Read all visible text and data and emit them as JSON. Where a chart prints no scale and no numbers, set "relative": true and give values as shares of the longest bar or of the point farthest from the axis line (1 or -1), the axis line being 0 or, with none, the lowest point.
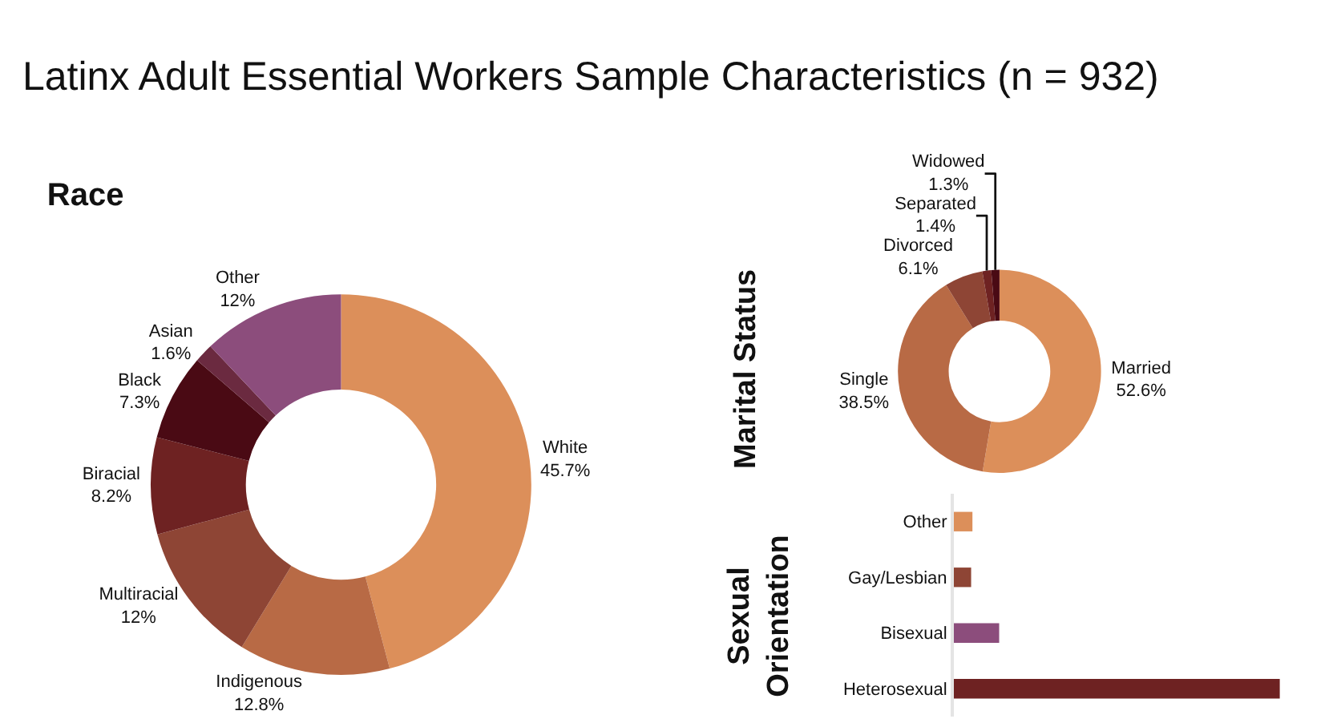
{
  "chart_data": [
    {
      "type": "donut",
      "title": "Latinx Adult Essential Workers Sample Characteristics (n = 932)",
      "subtitle": "Race",
      "categories": [
        "White",
        "Indigenous",
        "Multiracial",
        "Biracial",
        "Black",
        "Asian",
        "Other"
      ],
      "values": [
        45.7,
        12.8,
        12,
        8.2,
        7.3,
        1.6,
        12
      ],
      "value_labels": [
        "45.7%",
        "12.8%",
        "12%",
        "8.2%",
        "7.3%",
        "1.6%",
        "12%"
      ],
      "colors": [
        "#dc8f5a",
        "#b86a45",
        "#8e4535",
        "#6e2222",
        "#4a0a14",
        "#6b2a40",
        "#8c4d7c"
      ],
      "legend": false
    },
    {
      "type": "donut",
      "title": "Marital Status",
      "categories": [
        "Married",
        "Single",
        "Divorced",
        "Separated",
        "Widowed"
      ],
      "values": [
        52.6,
        38.5,
        6.1,
        1.4,
        1.3
      ],
      "value_labels": [
        "52.6%",
        "38.5%",
        "6.1%",
        "1.4%",
        "1.3%"
      ],
      "colors": [
        "#dc8f5a",
        "#b86a45",
        "#8e4535",
        "#6e2222",
        "#4a0a14"
      ],
      "legend": false
    },
    {
      "type": "bar",
      "orientation": "horizontal",
      "relative": true,
      "title": "Sexual Orientation",
      "categories": [
        "Other",
        "Gay/Lesbian",
        "Bisexual",
        "Heterosexual"
      ],
      "values": [
        0.057,
        0.053,
        0.139,
        1
      ],
      "colors": [
        "#dc8f5a",
        "#8e4535",
        "#8c4d7c",
        "#6e2222"
      ],
      "legend": false
    }
  ]
}
